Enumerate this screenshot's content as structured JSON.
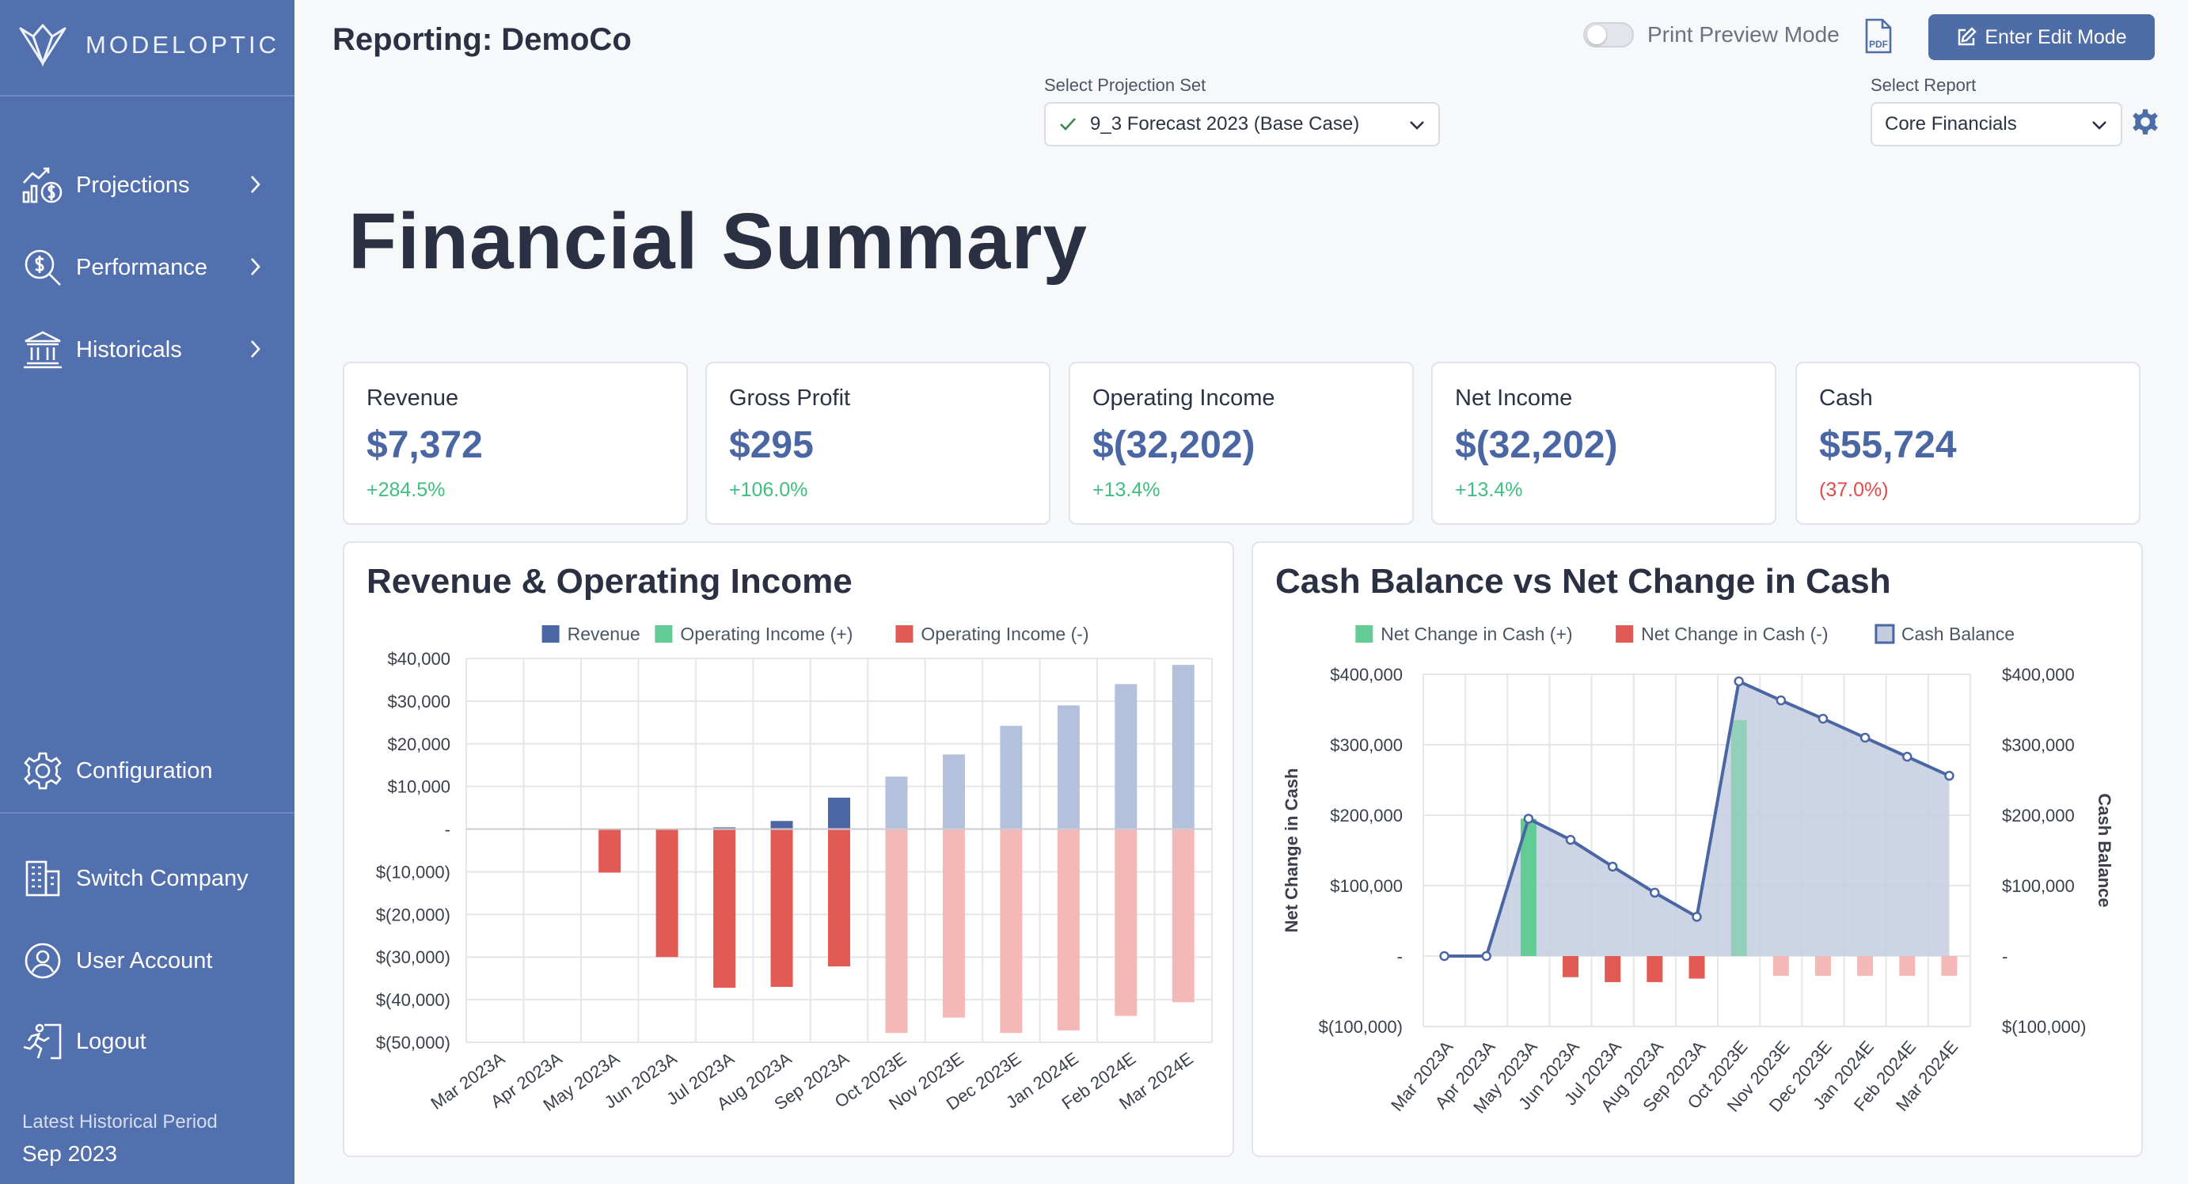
{
  "brand": "MODELOPTIC",
  "sidebar": {
    "items": [
      {
        "label": "Projections"
      },
      {
        "label": "Performance"
      },
      {
        "label": "Historicals"
      }
    ],
    "configuration": "Configuration",
    "switch_company": "Switch Company",
    "user_account": "User Account",
    "logout": "Logout",
    "latest_label": "Latest Historical Period",
    "latest_value": "Sep 2023"
  },
  "header": {
    "title": "Reporting: DemoCo",
    "print_preview_label": "Print Preview Mode",
    "print_preview_on": false,
    "pdf_icon": "pdf-file-icon",
    "edit_button": "Enter Edit Mode",
    "projection_label": "Select Projection Set",
    "projection_value": "9_3 Forecast 2023 (Base Case)",
    "report_label": "Select Report",
    "report_value": "Core Financials"
  },
  "page_title": "Financial Summary",
  "kpis": [
    {
      "label": "Revenue",
      "value": "$7,372",
      "change": "+284.5%",
      "positive": true
    },
    {
      "label": "Gross Profit",
      "value": "$295",
      "change": "+106.0%",
      "positive": true
    },
    {
      "label": "Operating Income",
      "value": "$(32,202)",
      "change": "+13.4%",
      "positive": true
    },
    {
      "label": "Net Income",
      "value": "$(32,202)",
      "change": "+13.4%",
      "positive": true
    },
    {
      "label": "Cash",
      "value": "$55,724",
      "change": "(37.0%)",
      "positive": false
    }
  ],
  "colors": {
    "revenue": "#4a67a3",
    "revenue_projected": "#b4c1dc",
    "op_neg": "#e15a54",
    "op_neg_projected": "#f4b9b7",
    "op_pos": "#63cc95",
    "cash_line": "#4a67a3",
    "cash_area": "#c4cde0"
  },
  "chart_data": [
    {
      "type": "bar",
      "title": "Revenue & Operating Income",
      "legend": [
        "Revenue",
        "Operating Income (+)",
        "Operating Income (-)"
      ],
      "categories": [
        "Mar 2023A",
        "Apr 2023A",
        "May 2023A",
        "Jun 2023A",
        "Jul 2023A",
        "Aug 2023A",
        "Sep 2023A",
        "Oct 2023E",
        "Nov 2023E",
        "Dec 2023E",
        "Jan 2024E",
        "Feb 2024E",
        "Mar 2024E"
      ],
      "projected": [
        false,
        false,
        false,
        false,
        false,
        false,
        false,
        true,
        true,
        true,
        true,
        true,
        true
      ],
      "series": [
        {
          "name": "Revenue",
          "values": [
            0,
            0,
            0,
            0,
            400,
            1900,
            7372,
            12300,
            17500,
            24200,
            29000,
            34000,
            38500
          ]
        },
        {
          "name": "Operating Income (-)",
          "values": [
            0,
            0,
            -10200,
            -30000,
            -37200,
            -37000,
            -32202,
            -47800,
            -44200,
            -47800,
            -47200,
            -43800,
            -40600
          ]
        }
      ],
      "ylim": [
        -50000,
        40000
      ],
      "yticks": [
        "$40,000",
        "$30,000",
        "$20,000",
        "$10,000",
        "-",
        "$(10,000)",
        "$(20,000)",
        "$(30,000)",
        "$(40,000)",
        "$(50,000)"
      ],
      "legend_position": "top",
      "grid": true
    },
    {
      "type": "bar",
      "title": "Cash Balance vs Net Change in Cash",
      "legend": [
        "Net Change in Cash (+)",
        "Net Change in Cash (-)",
        "Cash Balance"
      ],
      "categories": [
        "Mar 2023A",
        "Apr 2023A",
        "May 2023A",
        "Jun 2023A",
        "Jul 2023A",
        "Aug 2023A",
        "Sep 2023A",
        "Oct 2023E",
        "Nov 2023E",
        "Dec 2023E",
        "Jan 2024E",
        "Feb 2024E",
        "Mar 2024E"
      ],
      "projected": [
        false,
        false,
        false,
        false,
        false,
        false,
        false,
        true,
        true,
        true,
        true,
        true,
        true
      ],
      "series": [
        {
          "name": "Net Change in Cash",
          "values": [
            0,
            0,
            195000,
            -30000,
            -37000,
            -37000,
            -32000,
            335000,
            -28000,
            -28000,
            -28000,
            -28000,
            -28000
          ]
        },
        {
          "name": "Cash Balance",
          "values": [
            0,
            0,
            195000,
            165000,
            127000,
            90000,
            55724,
            390000,
            363000,
            337000,
            310000,
            283000,
            256000
          ]
        }
      ],
      "ylabel": "Net Change in Cash",
      "y2label": "Cash Balance",
      "ylim": [
        -100000,
        400000
      ],
      "yticks": [
        "$400,000",
        "$300,000",
        "$200,000",
        "$100,000",
        "-",
        "$(100,000)"
      ],
      "legend_position": "top",
      "grid": true
    }
  ]
}
